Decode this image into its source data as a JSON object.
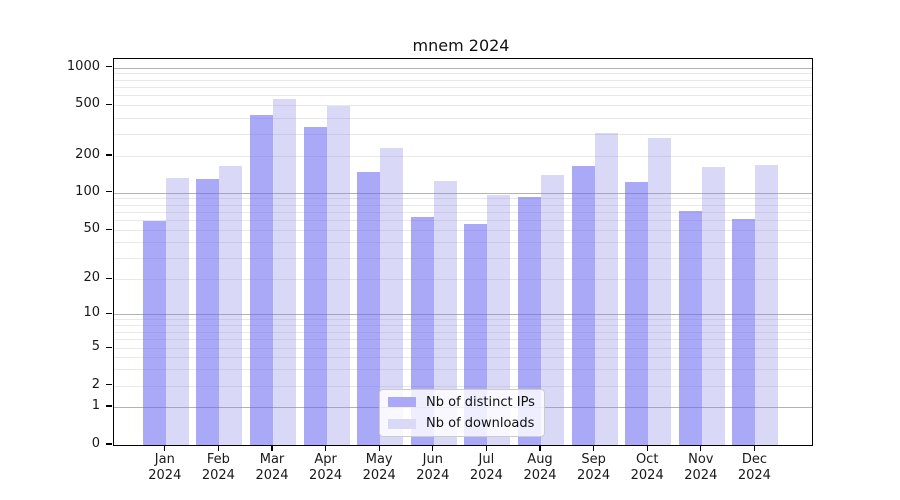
{
  "title": "mnem 2024",
  "chart_data": {
    "type": "bar",
    "title": "mnem 2024",
    "x_months": [
      "Jan",
      "Feb",
      "Mar",
      "Apr",
      "May",
      "Jun",
      "Jul",
      "Aug",
      "Sep",
      "Oct",
      "Nov",
      "Dec"
    ],
    "x_year": "2024",
    "categories": [
      "Jan 2024",
      "Feb 2024",
      "Mar 2024",
      "Apr 2024",
      "May 2024",
      "Jun 2024",
      "Jul 2024",
      "Aug 2024",
      "Sep 2024",
      "Oct 2024",
      "Nov 2024",
      "Dec 2024"
    ],
    "series": [
      {
        "name": "Nb of distinct IPs",
        "swatch_color": "#a9a9f7",
        "bar_color": "rgba(99,99,240,0.55)",
        "values": [
          59,
          129,
          417,
          338,
          149,
          64,
          56,
          92,
          166,
          122,
          72,
          62
        ]
      },
      {
        "name": "Nb of downloads",
        "swatch_color": "#d9d9f7",
        "bar_color": "rgba(128,128,228,0.30)",
        "values": [
          133,
          166,
          560,
          495,
          230,
          125,
          96,
          139,
          305,
          275,
          163,
          168
        ]
      }
    ],
    "y_ticks": [
      1000,
      500,
      200,
      100,
      50,
      20,
      10,
      5,
      2,
      1,
      0
    ],
    "yscale": "log above 1, linear 0-1 (symlog-like)",
    "ylim": [
      0,
      1170
    ],
    "grid": {
      "orientation": "horizontal",
      "major_at": [
        1,
        10,
        100,
        1000
      ],
      "major_color": "#b3b3b3",
      "minor_color": "#e8e8e8"
    },
    "legend_position": "lower center"
  }
}
